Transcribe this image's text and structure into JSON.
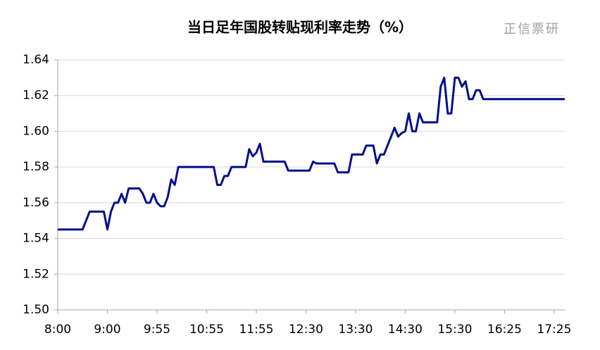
{
  "chart_data": {
    "type": "line",
    "title": "当日足年国股转贴现利率走势（%）",
    "watermark": "正信票研",
    "categories": [
      "8:00",
      null,
      null,
      null,
      null,
      null,
      null,
      null,
      null,
      null,
      null,
      null,
      null,
      null,
      "9:00",
      null,
      null,
      null,
      null,
      null,
      null,
      null,
      null,
      null,
      null,
      null,
      null,
      null,
      "9:55",
      null,
      null,
      null,
      null,
      null,
      null,
      null,
      null,
      null,
      null,
      null,
      null,
      null,
      "10:55",
      null,
      null,
      null,
      null,
      null,
      null,
      null,
      null,
      null,
      null,
      null,
      null,
      null,
      "11:55",
      null,
      null,
      null,
      null,
      null,
      null,
      null,
      null,
      null,
      null,
      null,
      null,
      null,
      "12:30",
      null,
      null,
      null,
      null,
      null,
      null,
      null,
      null,
      null,
      null,
      null,
      null,
      null,
      "13:30",
      null,
      null,
      null,
      null,
      null,
      null,
      null,
      null,
      null,
      null,
      null,
      null,
      null,
      "14:30",
      null,
      null,
      null,
      null,
      null,
      null,
      null,
      null,
      null,
      null,
      null,
      null,
      null,
      "15:30",
      null,
      null,
      null,
      null,
      null,
      null,
      null,
      null,
      null,
      null,
      null,
      null,
      null,
      "16:25",
      null,
      null,
      null,
      null,
      null,
      null,
      null,
      null,
      null,
      null,
      null,
      null,
      null,
      "17:25",
      null,
      null,
      null
    ],
    "values": [
      1.545,
      1.545,
      1.545,
      1.545,
      1.545,
      1.545,
      1.545,
      1.545,
      1.55,
      1.555,
      1.555,
      1.555,
      1.555,
      1.555,
      1.545,
      1.555,
      1.56,
      1.56,
      1.565,
      1.56,
      1.568,
      1.568,
      1.568,
      1.568,
      1.565,
      1.56,
      1.56,
      1.565,
      1.56,
      1.558,
      1.558,
      1.563,
      1.573,
      1.57,
      1.58,
      1.58,
      1.58,
      1.58,
      1.58,
      1.58,
      1.58,
      1.58,
      1.58,
      1.58,
      1.58,
      1.57,
      1.57,
      1.575,
      1.575,
      1.58,
      1.58,
      1.58,
      1.58,
      1.58,
      1.59,
      1.586,
      1.588,
      1.593,
      1.583,
      1.583,
      1.583,
      1.583,
      1.583,
      1.583,
      1.583,
      1.578,
      1.578,
      1.578,
      1.578,
      1.578,
      1.578,
      1.578,
      1.583,
      1.582,
      1.582,
      1.582,
      1.582,
      1.582,
      1.582,
      1.577,
      1.577,
      1.577,
      1.577,
      1.587,
      1.587,
      1.587,
      1.587,
      1.592,
      1.592,
      1.592,
      1.582,
      1.587,
      1.587,
      1.592,
      1.597,
      1.602,
      1.597,
      1.599,
      1.6,
      1.61,
      1.6,
      1.6,
      1.61,
      1.605,
      1.605,
      1.605,
      1.605,
      1.605,
      1.625,
      1.63,
      1.61,
      1.61,
      1.63,
      1.63,
      1.625,
      1.628,
      1.618,
      1.618,
      1.623,
      1.623,
      1.618,
      1.618,
      1.618,
      1.618,
      1.618,
      1.618,
      1.618,
      1.618,
      1.618,
      1.618,
      1.618,
      1.618,
      1.618,
      1.618,
      1.618,
      1.618,
      1.618,
      1.618,
      1.618,
      1.618,
      1.618,
      1.618,
      1.618,
      1.618
    ],
    "color": "#000f8c",
    "ylim": [
      1.5,
      1.64
    ],
    "yticks": [
      {
        "value": 1.5,
        "label": "1.50"
      },
      1.52,
      1.54,
      1.56,
      1.58,
      {
        "value": 1.6,
        "label": "1.60"
      },
      1.62,
      1.64
    ],
    "grid": true
  }
}
